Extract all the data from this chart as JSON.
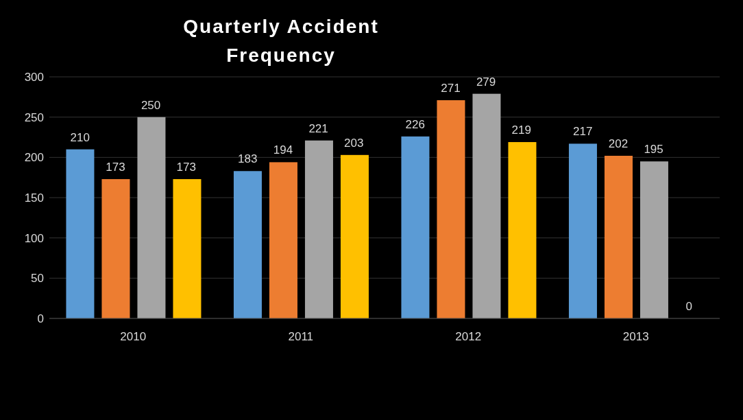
{
  "chart_data": {
    "type": "bar",
    "title": "Quarterly Accident Frequency",
    "categories": [
      "2010",
      "2011",
      "2012",
      "2013"
    ],
    "series": [
      {
        "color": "#5b9bd5",
        "values": [
          210,
          183,
          226,
          217
        ]
      },
      {
        "color": "#ed7d31",
        "values": [
          173,
          194,
          271,
          202
        ]
      },
      {
        "color": "#a5a5a5",
        "values": [
          250,
          221,
          279,
          195
        ]
      },
      {
        "color": "#ffc000",
        "values": [
          173,
          203,
          219,
          0
        ]
      }
    ],
    "ylim": [
      0,
      300
    ],
    "yticks": [
      0,
      50,
      100,
      150,
      200,
      250,
      300
    ],
    "grid": "y",
    "data_labels": true,
    "legend": false
  }
}
